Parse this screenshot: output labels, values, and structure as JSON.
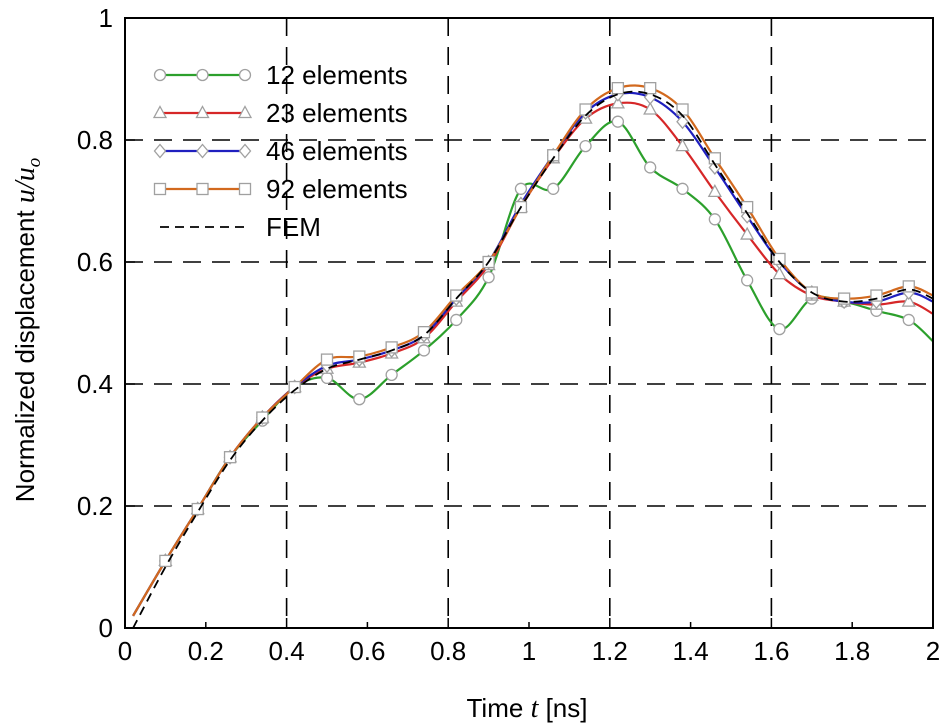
{
  "chart_data": {
    "type": "line",
    "xlabel": {
      "prefix": "Time ",
      "var": "t",
      "suffix": " [ns]"
    },
    "ylabel": {
      "prefix": "Normalized displacement ",
      "var": "u/u",
      "sub": "o"
    },
    "xlim": [
      0,
      2
    ],
    "ylim": [
      0,
      1
    ],
    "xticks": [
      "0",
      "0.2",
      "0.4",
      "0.6",
      "0.8",
      "1",
      "1.2",
      "1.4",
      "1.6",
      "1.8",
      "2"
    ],
    "yticks": [
      "0",
      "0.2",
      "0.4",
      "0.6",
      "0.8",
      "1"
    ],
    "grid": true,
    "legend_position": "top-left",
    "series": [
      {
        "name": "12 elements",
        "color": "#2ca02c",
        "marker": "circle",
        "x": [
          0.02,
          0.1,
          0.18,
          0.26,
          0.34,
          0.42,
          0.5,
          0.58,
          0.66,
          0.74,
          0.82,
          0.9,
          0.98,
          1.06,
          1.14,
          1.22,
          1.3,
          1.38,
          1.46,
          1.54,
          1.62,
          1.7,
          1.78,
          1.86,
          1.94,
          2.0
        ],
        "y": [
          0.02,
          0.11,
          0.195,
          0.28,
          0.34,
          0.395,
          0.41,
          0.375,
          0.415,
          0.455,
          0.505,
          0.575,
          0.72,
          0.72,
          0.79,
          0.83,
          0.755,
          0.72,
          0.67,
          0.57,
          0.49,
          0.54,
          0.535,
          0.52,
          0.505,
          0.47
        ],
        "markers_at": [
          0.1,
          0.18,
          0.26,
          0.34,
          0.42,
          0.5,
          0.58,
          0.66,
          0.74,
          0.82,
          0.9,
          0.98,
          1.06,
          1.14,
          1.22,
          1.3,
          1.38,
          1.46,
          1.54,
          1.62,
          1.7,
          1.78,
          1.86,
          1.94
        ]
      },
      {
        "name": "23 elements",
        "color": "#d62728",
        "marker": "triangle",
        "x": [
          0.02,
          0.1,
          0.18,
          0.26,
          0.34,
          0.42,
          0.5,
          0.58,
          0.66,
          0.74,
          0.82,
          0.9,
          0.98,
          1.06,
          1.14,
          1.22,
          1.3,
          1.38,
          1.46,
          1.54,
          1.62,
          1.7,
          1.78,
          1.86,
          1.94,
          2.0
        ],
        "y": [
          0.02,
          0.11,
          0.195,
          0.28,
          0.345,
          0.395,
          0.425,
          0.435,
          0.45,
          0.475,
          0.535,
          0.595,
          0.69,
          0.77,
          0.835,
          0.86,
          0.85,
          0.79,
          0.715,
          0.645,
          0.58,
          0.545,
          0.535,
          0.53,
          0.535,
          0.515
        ],
        "markers_at": [
          0.1,
          0.18,
          0.26,
          0.34,
          0.42,
          0.5,
          0.58,
          0.66,
          0.74,
          0.82,
          0.9,
          0.98,
          1.06,
          1.14,
          1.22,
          1.3,
          1.38,
          1.46,
          1.54,
          1.62,
          1.7,
          1.78,
          1.86,
          1.94
        ]
      },
      {
        "name": "46 elements",
        "color": "#1f1fbf",
        "marker": "diamond",
        "x": [
          0.02,
          0.1,
          0.18,
          0.26,
          0.34,
          0.42,
          0.5,
          0.58,
          0.66,
          0.74,
          0.82,
          0.9,
          0.98,
          1.06,
          1.14,
          1.22,
          1.3,
          1.38,
          1.46,
          1.54,
          1.62,
          1.7,
          1.78,
          1.86,
          1.94,
          2.0
        ],
        "y": [
          0.02,
          0.11,
          0.195,
          0.28,
          0.345,
          0.395,
          0.43,
          0.44,
          0.455,
          0.48,
          0.54,
          0.6,
          0.695,
          0.775,
          0.845,
          0.875,
          0.87,
          0.83,
          0.755,
          0.675,
          0.6,
          0.55,
          0.535,
          0.535,
          0.55,
          0.535
        ],
        "markers_at": [
          0.1,
          0.18,
          0.26,
          0.34,
          0.42,
          0.5,
          0.58,
          0.66,
          0.74,
          0.82,
          0.9,
          0.98,
          1.06,
          1.14,
          1.22,
          1.3,
          1.38,
          1.46,
          1.54,
          1.62,
          1.7,
          1.78,
          1.86,
          1.94
        ]
      },
      {
        "name": "92 elements",
        "color": "#d2691e",
        "marker": "square",
        "x": [
          0.02,
          0.1,
          0.18,
          0.26,
          0.34,
          0.42,
          0.5,
          0.58,
          0.66,
          0.74,
          0.82,
          0.9,
          0.98,
          1.06,
          1.14,
          1.22,
          1.3,
          1.38,
          1.46,
          1.54,
          1.62,
          1.7,
          1.78,
          1.86,
          1.94,
          2.0
        ],
        "y": [
          0.02,
          0.11,
          0.195,
          0.28,
          0.345,
          0.395,
          0.44,
          0.445,
          0.46,
          0.485,
          0.545,
          0.6,
          0.69,
          0.775,
          0.85,
          0.885,
          0.885,
          0.85,
          0.77,
          0.69,
          0.605,
          0.55,
          0.54,
          0.545,
          0.56,
          0.545
        ],
        "markers_at": [
          0.1,
          0.18,
          0.26,
          0.34,
          0.42,
          0.5,
          0.58,
          0.66,
          0.74,
          0.82,
          0.9,
          0.98,
          1.06,
          1.14,
          1.22,
          1.3,
          1.38,
          1.46,
          1.54,
          1.62,
          1.7,
          1.78,
          1.86,
          1.94
        ]
      },
      {
        "name": "FEM",
        "color": "#000000",
        "marker": "none",
        "dashed": true,
        "x": [
          0.02,
          0.1,
          0.18,
          0.26,
          0.34,
          0.42,
          0.5,
          0.58,
          0.66,
          0.74,
          0.82,
          0.9,
          0.98,
          1.06,
          1.14,
          1.22,
          1.3,
          1.38,
          1.46,
          1.54,
          1.62,
          1.7,
          1.78,
          1.86,
          1.94,
          2.0
        ],
        "y": [
          0.0,
          0.1,
          0.19,
          0.275,
          0.34,
          0.39,
          0.425,
          0.44,
          0.455,
          0.48,
          0.54,
          0.6,
          0.69,
          0.77,
          0.84,
          0.875,
          0.875,
          0.84,
          0.76,
          0.68,
          0.6,
          0.55,
          0.535,
          0.54,
          0.555,
          0.54
        ],
        "markers_at": []
      }
    ]
  }
}
